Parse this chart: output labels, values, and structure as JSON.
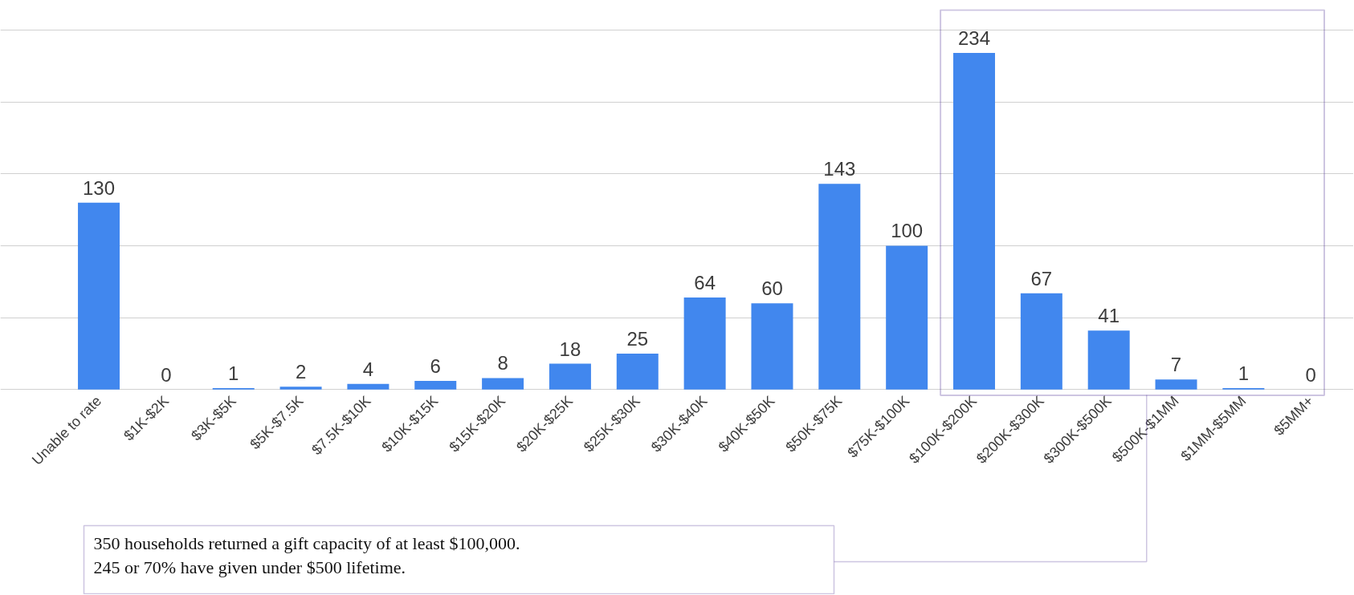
{
  "chart_data": {
    "type": "bar",
    "categories": [
      "Unable to rate",
      "$1K-$2K",
      "$3K-$5K",
      "$5K-$7.5K",
      "$7.5K-$10K",
      "$10K-$15K",
      "$15K-$20K",
      "$20K-$25K",
      "$25K-$30K",
      "$30K-$40K",
      "$40K-$50K",
      "$50K-$75K",
      "$75K-$100K",
      "$100K-$200K",
      "$200K-$300K",
      "$300K-$500K",
      "$500K-$1MM",
      "$1MM-$5MM",
      "$5MM+"
    ],
    "values": [
      130,
      0,
      1,
      2,
      4,
      6,
      8,
      18,
      25,
      64,
      60,
      143,
      100,
      234,
      67,
      41,
      7,
      1,
      0
    ],
    "color": "#4187ee",
    "data_labels": true,
    "grid": "y",
    "tick_labels": "x",
    "annotations": [
      "350 households returned a gift capacity of at least $100,000.",
      "245 or 70% have given under $500 lifetime."
    ]
  }
}
